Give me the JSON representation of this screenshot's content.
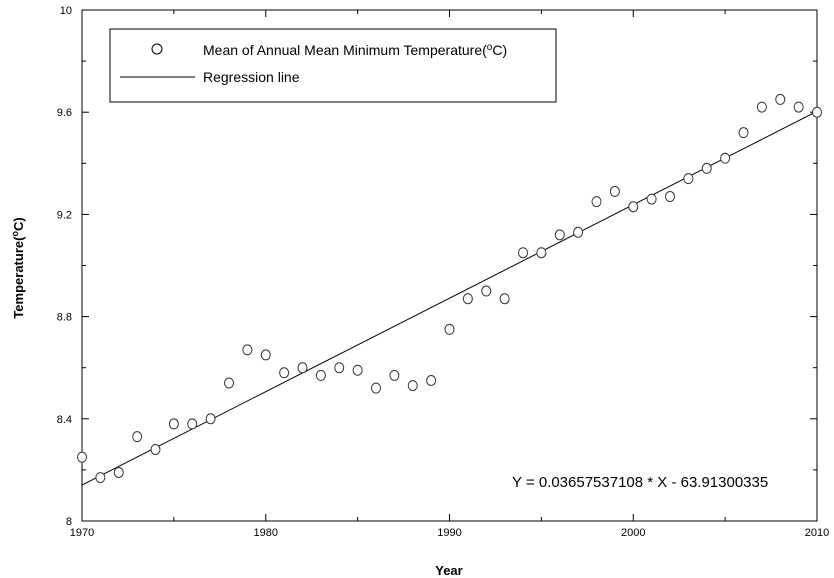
{
  "chart_data": {
    "type": "scatter",
    "xlabel": "Year",
    "ylabel": "Temperature(°C)",
    "xlim": [
      1970,
      2010
    ],
    "ylim": [
      8,
      10
    ],
    "x_ticks": [
      1970,
      1980,
      1990,
      2000,
      2010
    ],
    "y_ticks": [
      8,
      8.4,
      8.8,
      9.2,
      9.6,
      10
    ],
    "grid": false,
    "legend_position": "top-left",
    "series": [
      {
        "name": "Mean of Annual Mean Minimum Temperature(°C)",
        "marker": "open-circle",
        "x": [
          1970,
          1971,
          1972,
          1973,
          1974,
          1975,
          1976,
          1977,
          1978,
          1979,
          1980,
          1981,
          1982,
          1983,
          1984,
          1985,
          1986,
          1987,
          1988,
          1989,
          1990,
          1991,
          1992,
          1993,
          1994,
          1995,
          1996,
          1997,
          1998,
          1999,
          2000,
          2001,
          2002,
          2003,
          2004,
          2005,
          2006,
          2007,
          2008,
          2009,
          2010
        ],
        "y": [
          8.25,
          8.17,
          8.19,
          8.33,
          8.28,
          8.38,
          8.38,
          8.4,
          8.54,
          8.67,
          8.65,
          8.58,
          8.6,
          8.57,
          8.6,
          8.59,
          8.52,
          8.57,
          8.53,
          8.55,
          8.75,
          8.87,
          8.9,
          8.87,
          9.05,
          9.05,
          9.12,
          9.13,
          9.25,
          9.29,
          9.23,
          9.26,
          9.27,
          9.34,
          9.38,
          9.42,
          9.52,
          9.62,
          9.65,
          9.62,
          9.6
        ]
      },
      {
        "name": "Regression line",
        "type": "line",
        "slope": 0.03657537108,
        "intercept": -63.91300335
      }
    ],
    "legend": {
      "entry1_prefix": "Mean of Annual Mean Minimum Temperature(",
      "entry1_sup": "o",
      "entry1_suffix": "C)",
      "entry2": "Regression line"
    },
    "ylabel_parts": {
      "prefix": "Temperature(",
      "sup": "o",
      "suffix": "C)"
    },
    "annotation": "Y = 0.03657537108 * X - 63.91300335"
  }
}
